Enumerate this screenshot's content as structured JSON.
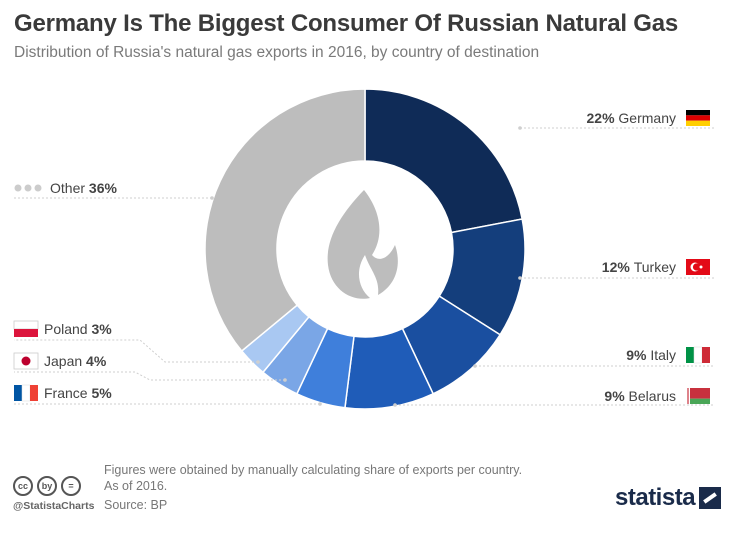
{
  "header": {
    "title": "Germany Is The Biggest Consumer Of Russian Natural Gas",
    "subtitle": "Distribution of Russia's natural gas exports in 2016, by country of destination"
  },
  "chart_data": {
    "type": "pie",
    "title": "Germany Is The Biggest Consumer Of Russian Natural Gas",
    "subtitle": "Distribution of Russia's natural gas exports in 2016, by country of destination",
    "unit": "%",
    "slices": [
      {
        "label": "Germany",
        "value": 22,
        "value_label": "22%",
        "color": "#0f2b57",
        "flag": "de"
      },
      {
        "label": "Turkey",
        "value": 12,
        "value_label": "12%",
        "color": "#143e7c",
        "flag": "tr"
      },
      {
        "label": "Italy",
        "value": 9,
        "value_label": "9%",
        "color": "#1a4fa0",
        "flag": "it"
      },
      {
        "label": "Belarus",
        "value": 9,
        "value_label": "9%",
        "color": "#1f5cb8",
        "flag": "by"
      },
      {
        "label": "France",
        "value": 5,
        "value_label": "5%",
        "color": "#3f7fdb",
        "flag": "fr"
      },
      {
        "label": "Japan",
        "value": 4,
        "value_label": "4%",
        "color": "#7aa6e6",
        "flag": "jp"
      },
      {
        "label": "Poland",
        "value": 3,
        "value_label": "3%",
        "color": "#a9c8f2",
        "flag": "pl"
      },
      {
        "label": "Other",
        "value": 36,
        "value_label": "36%",
        "color": "#bdbdbd",
        "flag": "dots"
      }
    ],
    "center_icon": "flame-icon"
  },
  "footer": {
    "note_line1": "Figures were obtained by manually calculating share of exports per country.",
    "note_line2": "As of 2016.",
    "source": "Source: BP",
    "handle": "@StatistaCharts",
    "brand": "statista",
    "cc_icons": [
      "cc",
      "by",
      "="
    ]
  }
}
